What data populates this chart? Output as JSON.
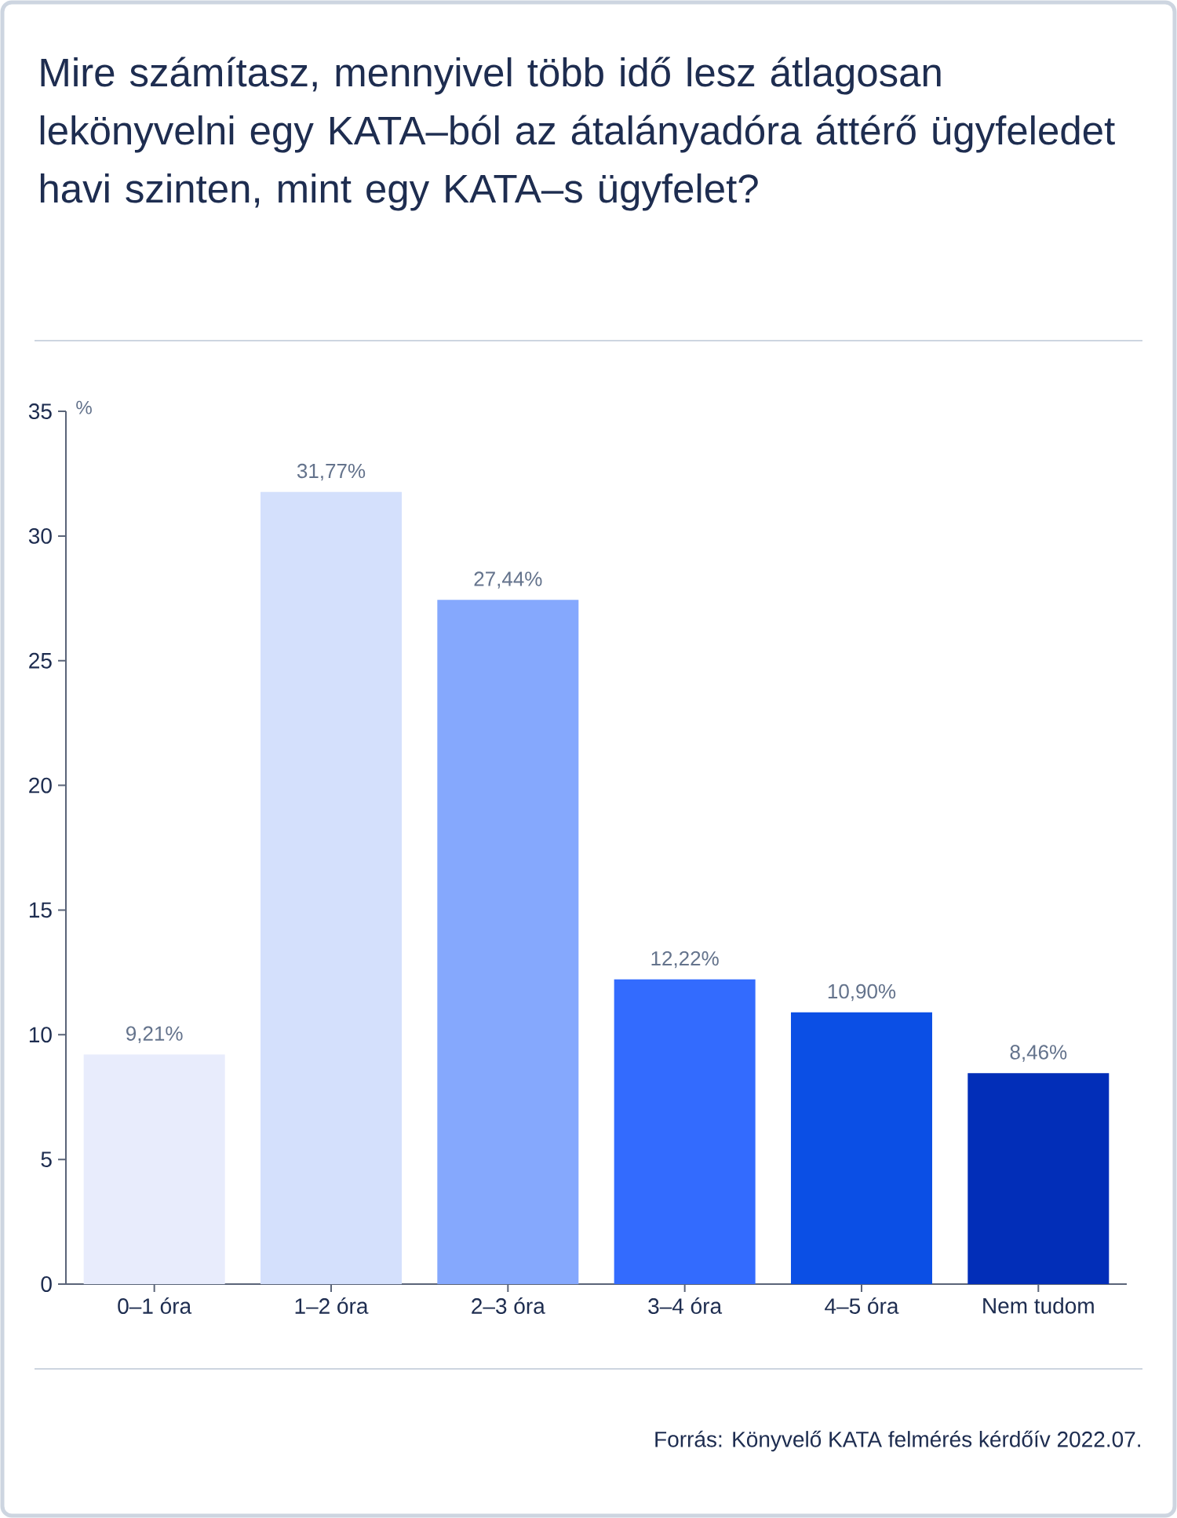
{
  "chart_data": {
    "type": "bar",
    "title": "Mire számítasz, mennyivel több idő lesz átlagosan lekönyvelni egy KATA–ból az átalányadóra áttérő ügyfeledet havi szinten, mint egy KATA–s ügyfelet?",
    "ylabel": "%",
    "categories": [
      "0–1 óra",
      "1–2 óra",
      "2–3 óra",
      "3–4 óra",
      "4–5 óra",
      "Nem tudom"
    ],
    "values": [
      9.21,
      31.77,
      27.44,
      12.22,
      10.9,
      8.46
    ],
    "value_labels": [
      "9,21%",
      "31,77%",
      "27,44%",
      "12,22%",
      "10,90%",
      "8,46%"
    ],
    "colors": [
      "#e8ecfc",
      "#d4e0fc",
      "#85a8fd",
      "#336bfe",
      "#0b4fe5",
      "#022eb8"
    ],
    "ylim": [
      0,
      35
    ],
    "yticks": [
      0,
      5,
      10,
      15,
      20,
      25,
      30,
      35
    ],
    "grid": false,
    "annotations": [
      "Forrás: Könyvelő KATA felmérés kérdőív 2022.07."
    ]
  }
}
